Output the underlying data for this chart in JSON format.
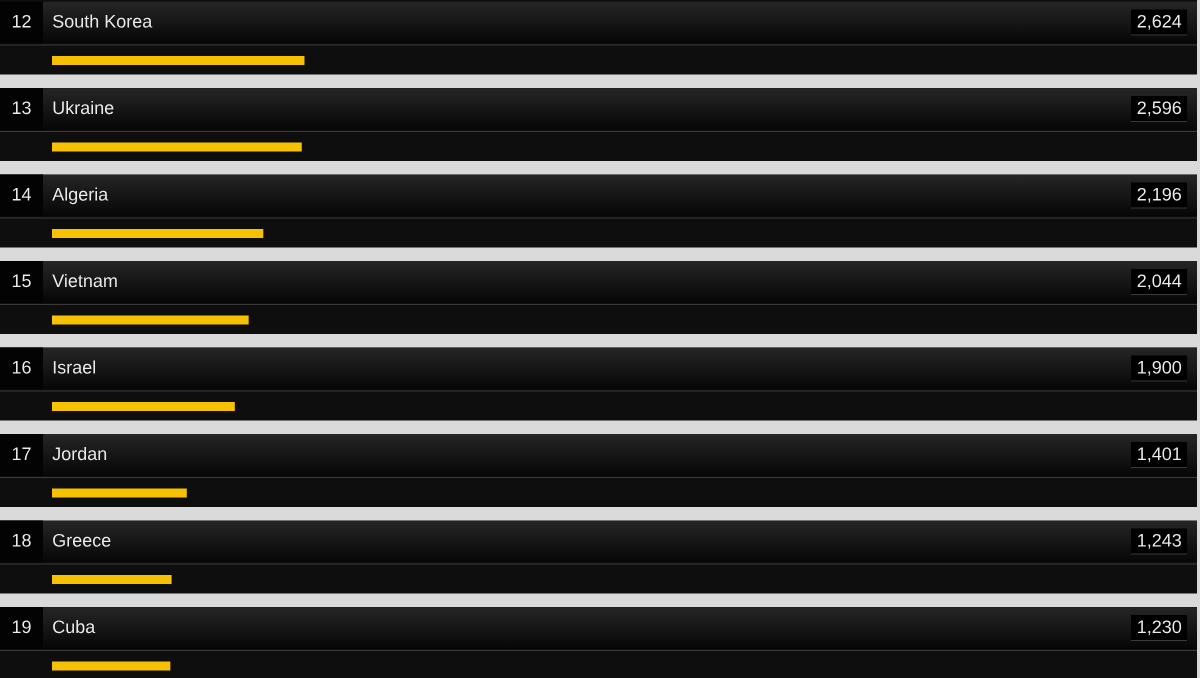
{
  "chart_data": {
    "type": "bar",
    "orientation": "horizontal",
    "categories": [
      "South Korea",
      "Ukraine",
      "Algeria",
      "Vietnam",
      "Israel",
      "Jordan",
      "Greece",
      "Cuba"
    ],
    "values": [
      2624,
      2596,
      2196,
      2044,
      1900,
      1401,
      1243,
      1230
    ],
    "value_labels": [
      "2,624",
      "2,596",
      "2,196",
      "2,044",
      "1,900",
      "1,401",
      "1,243",
      "1,230"
    ],
    "color": "#f6c100",
    "xlim": [
      0,
      11900
    ],
    "tick_labels": "y",
    "annotations": [
      "12",
      "13",
      "14",
      "15",
      "16",
      "17",
      "18",
      "19"
    ]
  }
}
